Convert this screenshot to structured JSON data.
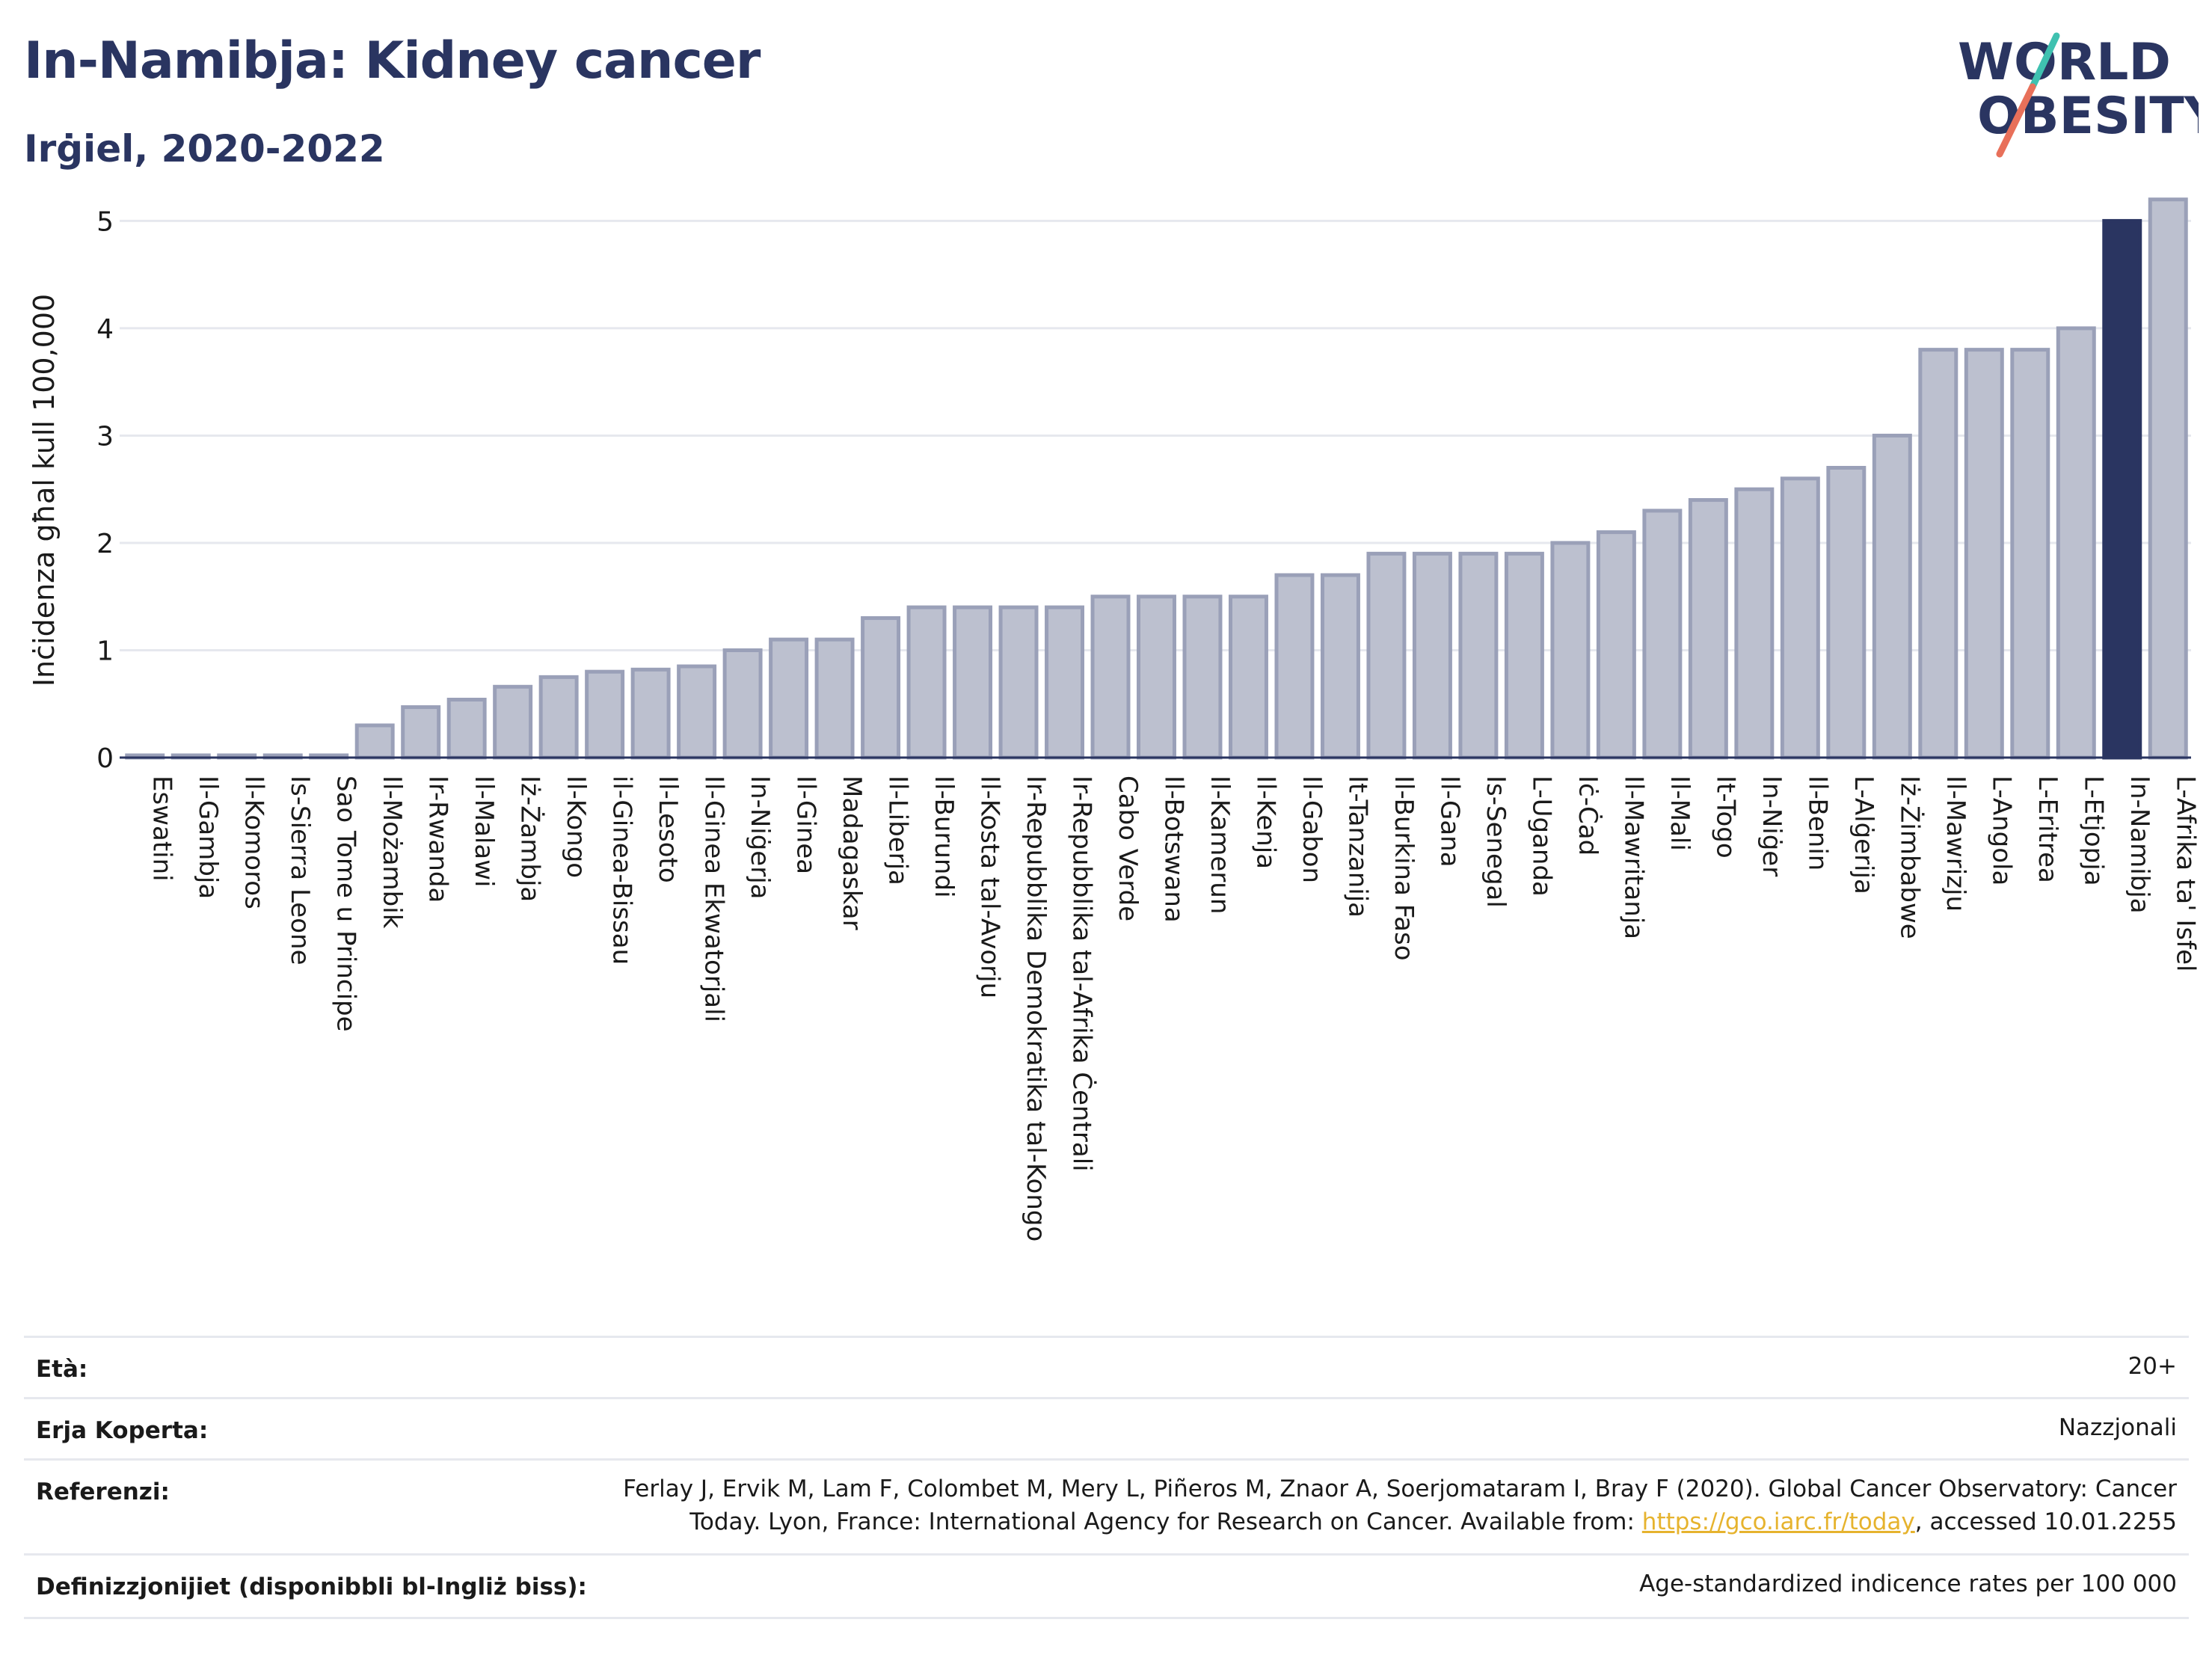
{
  "header": {
    "title": "In-Namibja: Kidney cancer",
    "subtitle": "Irġiel, 2020-2022"
  },
  "logo": {
    "line1": "WORLD",
    "line2": "OBESITY",
    "text_color": "#2a3561",
    "accent_teal": "#3fc1b0",
    "accent_red": "#e8705a"
  },
  "colors": {
    "bar_fill": "#bcc0cf",
    "bar_stroke": "#9aa0b8",
    "highlight_fill": "#2a3561",
    "grid": "#e6e8ee",
    "axis": "#2a3561"
  },
  "chart_data": {
    "type": "bar",
    "ylabel": "Inċidenza għal kull 100,000",
    "ylim": [
      0,
      5.4
    ],
    "yticks": [
      "0",
      "1",
      "2",
      "3",
      "4",
      "5"
    ],
    "grid": true,
    "highlight": "In-Namibja",
    "categories": [
      "Eswatini",
      "Il-Gambja",
      "Il-Komoros",
      "Is-Sierra Leone",
      "Sao Tome u Principe",
      "Il-Możambik",
      "Ir-Rwanda",
      "Il-Malawi",
      "Iż-Żambja",
      "Il-Kongo",
      "il-Ginea-Bissau",
      "Il-Lesoto",
      "Il-Ginea Ekwatorjali",
      "In-Niġerja",
      "Il-Ginea",
      "Madagaskar",
      "Il-Liberja",
      "Il-Burundi",
      "Il-Kosta tal-Avorju",
      "Ir-Repubblika Demokratika tal-Kongo",
      "Ir-Repubblika tal-Afrika Ċentrali",
      "Cabo Verde",
      "Il-Botswana",
      "Il-Kamerun",
      "Il-Kenja",
      "Il-Gabon",
      "It-Tanzanija",
      "Il-Burkina Faso",
      "Il-Gana",
      "Is-Senegal",
      "L-Uganda",
      "Iċ-Ċad",
      "Il-Mawritanja",
      "Il-Mali",
      "It-Togo",
      "In-Niġer",
      "Il-Benin",
      "L-Alġerija",
      "Iż-Żimbabwe",
      "Il-Mawrizju",
      "L-Angola",
      "L-Eritrea",
      "L-Etjopja",
      "In-Namibja",
      "L-Afrika ta' Isfel"
    ],
    "values": [
      0.0,
      0.0,
      0.0,
      0.0,
      0.0,
      0.3,
      0.47,
      0.54,
      0.66,
      0.75,
      0.8,
      0.82,
      0.85,
      1.0,
      1.1,
      1.1,
      1.3,
      1.4,
      1.4,
      1.4,
      1.4,
      1.5,
      1.5,
      1.5,
      1.5,
      1.7,
      1.7,
      1.9,
      1.9,
      1.9,
      1.9,
      2.0,
      2.1,
      2.3,
      2.4,
      2.5,
      2.6,
      2.7,
      3.0,
      3.8,
      3.8,
      3.8,
      4.0,
      5.0,
      5.2
    ]
  },
  "footer": {
    "age_label": "Età:",
    "age_value": "20+",
    "coverage_label": "Erja Koperta:",
    "coverage_value": "Nazzjonali",
    "references_label": "Referenzi:",
    "references_line1": "Ferlay J, Ervik M, Lam F, Colombet M, Mery L, Piñeros M, Znaor A, Soerjomataram I, Bray F (2020). Global Cancer Observatory: Cancer",
    "references_line2_prefix": "Today. Lyon, France: International Agency for Research on Cancer. Available from: ",
    "references_link": "https://gco.iarc.fr/today",
    "references_line2_suffix": ", accessed 10.01.2255",
    "definitions_label": "Definizzjonijiet (disponibbli bl-Ingliż biss):",
    "definitions_value": "Age-standardized indicence rates per 100 000"
  }
}
